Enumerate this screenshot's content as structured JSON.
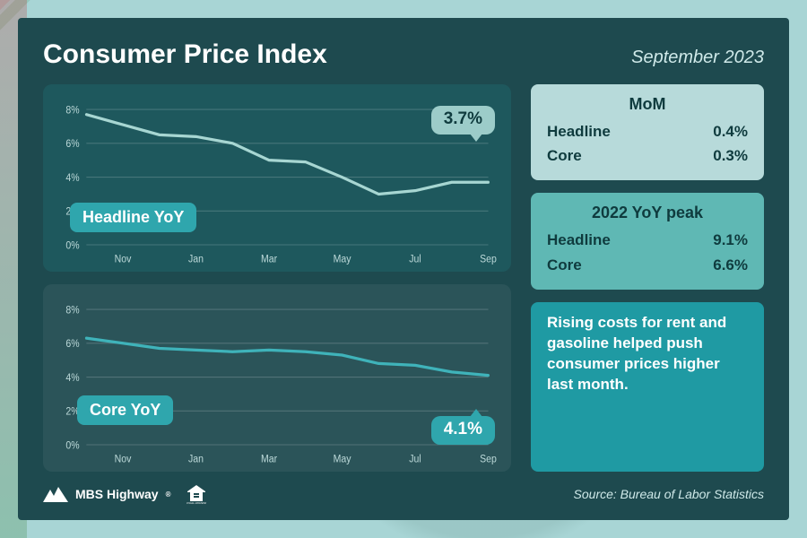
{
  "header": {
    "title": "Consumer Price Index",
    "subtitle": "September 2023"
  },
  "charts": {
    "x_labels": [
      "Nov",
      "Jan",
      "Mar",
      "May",
      "Jul",
      "Sep"
    ],
    "x_positions": [
      1,
      3,
      5,
      7,
      9,
      11
    ],
    "n_points": 12,
    "y_ticks": [
      0,
      2,
      4,
      6,
      8
    ],
    "y_max": 8.5,
    "grid_color": "rgba(255,255,255,0.18)",
    "label_color": "#bcd9d9",
    "label_fontsize": 11,
    "headline": {
      "panel_bg": "rgba(30,90,95,0.85)",
      "pill_label": "Headline YoY",
      "pill_bg": "#2fa6ad",
      "pill_color": "#ffffff",
      "line_color": "#a7d6d2",
      "line_width": 3,
      "values": [
        7.7,
        7.1,
        6.5,
        6.4,
        6.0,
        5.0,
        4.9,
        4.0,
        3.0,
        3.2,
        3.7,
        3.7
      ],
      "callout_value": "3.7%",
      "callout_bg": "#9cccc9",
      "callout_color": "#0f3b3e",
      "callout_tail": "down"
    },
    "core": {
      "panel_bg": "rgba(255,255,255,0.06)",
      "pill_label": "Core YoY",
      "pill_bg": "#2fa6ad",
      "pill_color": "#ffffff",
      "line_color": "#3fb3ba",
      "line_width": 3,
      "values": [
        6.3,
        6.0,
        5.7,
        5.6,
        5.5,
        5.6,
        5.5,
        5.3,
        4.8,
        4.7,
        4.3,
        4.1
      ],
      "callout_value": "4.1%",
      "callout_bg": "#2fa6ad",
      "callout_color": "#ffffff",
      "callout_tail": "up"
    }
  },
  "sidebar": {
    "mom": {
      "title": "MoM",
      "bg": "#b7dada",
      "text_color": "#0f3b3e",
      "rows": [
        {
          "label": "Headline",
          "value": "0.4%"
        },
        {
          "label": "Core",
          "value": "0.3%"
        }
      ]
    },
    "peak": {
      "title": "2022 YoY peak",
      "bg": "#5fb8b4",
      "text_color": "#0f3b3e",
      "rows": [
        {
          "label": "Headline",
          "value": "9.1%"
        },
        {
          "label": "Core",
          "value": "6.6%"
        }
      ]
    },
    "commentary": {
      "bg": "#1f9aa3",
      "text_color": "#ffffff",
      "text": "Rising costs for rent and gasoline helped push consumer prices higher last month."
    }
  },
  "footer": {
    "source": "Source: Bureau of Labor Statistics",
    "logo_text": "MBS Highway",
    "logo_color": "#ffffff"
  }
}
